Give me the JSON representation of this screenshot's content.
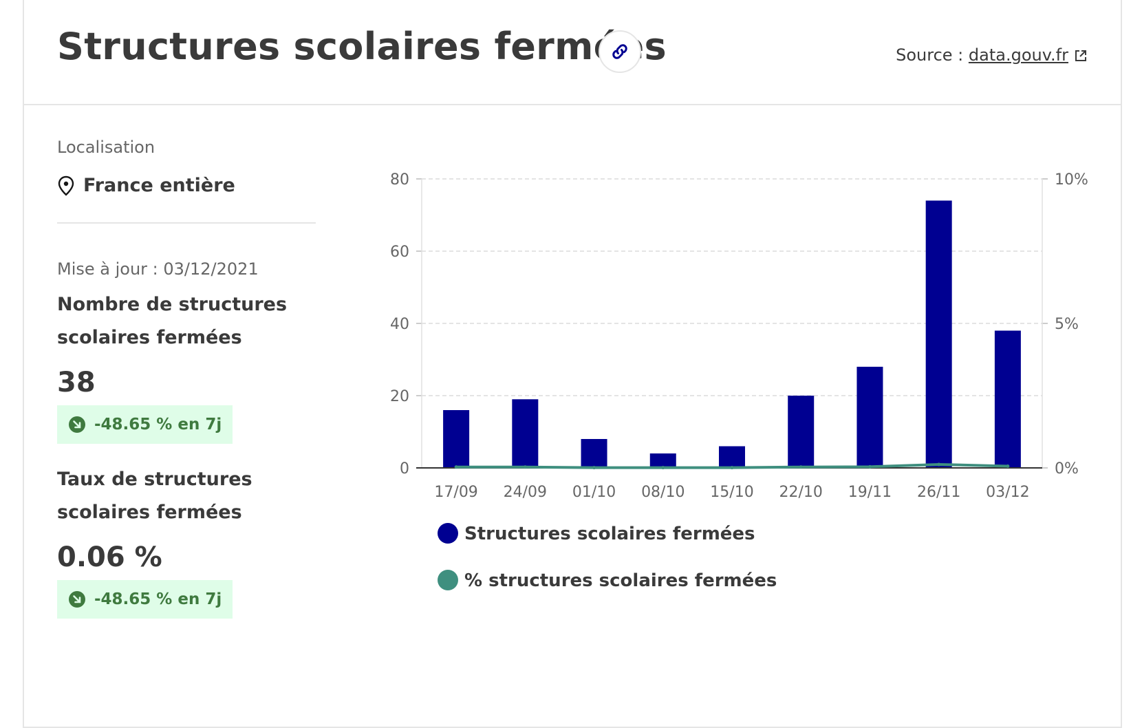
{
  "header": {
    "title": "Structures scolaires fermées",
    "source_prefix": "Source : ",
    "source_link": "data.gouv.fr"
  },
  "side": {
    "location_label": "Localisation",
    "location_value": "France entière",
    "updated": "Mise à jour : 03/12/2021",
    "kpi1": {
      "title_line1": "Nombre de structures",
      "title_line2": "scolaires fermées",
      "value": "38",
      "trend": "-48.65 % en 7j"
    },
    "kpi2": {
      "title_line1": "Taux de structures",
      "title_line2": "scolaires fermées",
      "value": "0.06 %",
      "trend": "-48.65 % en 7j"
    }
  },
  "colors": {
    "bar": "#000091",
    "line": "#3f8f7f",
    "badge_bg": "#dffde8",
    "badge_text": "#3f7a3f"
  },
  "chart_data": {
    "type": "bar",
    "categories": [
      "17/09",
      "24/09",
      "01/10",
      "08/10",
      "15/10",
      "22/10",
      "19/11",
      "26/11",
      "03/12"
    ],
    "series": [
      {
        "name": "Structures scolaires fermées",
        "type": "bar",
        "axis": "left",
        "values": [
          16,
          19,
          8,
          4,
          6,
          20,
          28,
          74,
          38
        ]
      },
      {
        "name": "% structures scolaires fermées",
        "type": "line",
        "axis": "right",
        "values": [
          0.03,
          0.03,
          0.01,
          0.01,
          0.01,
          0.03,
          0.04,
          0.12,
          0.06
        ]
      }
    ],
    "ylim": [
      0,
      80
    ],
    "yticks": [
      0,
      20,
      40,
      60,
      80
    ],
    "y2lim": [
      0,
      10
    ],
    "y2ticks": [
      0,
      5,
      10
    ],
    "y2tick_labels": [
      "0%",
      "5%",
      "10%"
    ],
    "grid": true,
    "legend": "bottom-left"
  }
}
